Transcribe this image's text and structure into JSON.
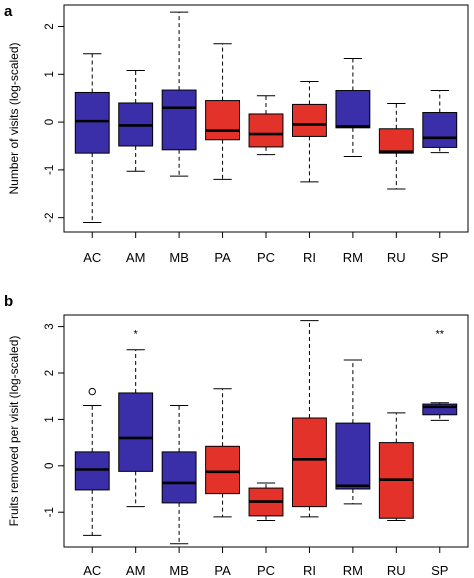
{
  "colors": {
    "blue": "#3a2fa8",
    "red": "#e3322a",
    "median": "#000000",
    "frame": "#000000"
  },
  "chart_data": [
    {
      "type": "boxplot",
      "panel_label": "a",
      "ylabel": "Number of visits (log-scaled)",
      "ylim": [
        -2.3,
        2.45
      ],
      "yticks": [
        -2,
        -1,
        0,
        1,
        2
      ],
      "categories": [
        "AC",
        "AM",
        "MB",
        "PA",
        "PC",
        "RI",
        "RM",
        "RU",
        "SP"
      ],
      "boxes": [
        {
          "cat": "AC",
          "min": -2.1,
          "q1": -0.65,
          "median": 0.02,
          "q3": 0.62,
          "max": 1.43,
          "color": "blue",
          "outliers": []
        },
        {
          "cat": "AM",
          "min": -1.03,
          "q1": -0.5,
          "median": -0.07,
          "q3": 0.4,
          "max": 1.08,
          "color": "blue",
          "outliers": []
        },
        {
          "cat": "MB",
          "min": -1.13,
          "q1": -0.58,
          "median": 0.3,
          "q3": 0.67,
          "max": 2.3,
          "color": "blue",
          "outliers": []
        },
        {
          "cat": "PA",
          "min": -1.2,
          "q1": -0.37,
          "median": -0.18,
          "q3": 0.45,
          "max": 1.64,
          "color": "red",
          "outliers": []
        },
        {
          "cat": "PC",
          "min": -0.68,
          "q1": -0.52,
          "median": -0.25,
          "q3": 0.17,
          "max": 0.55,
          "color": "red",
          "outliers": []
        },
        {
          "cat": "RI",
          "min": -1.25,
          "q1": -0.3,
          "median": -0.05,
          "q3": 0.37,
          "max": 0.85,
          "color": "red",
          "outliers": []
        },
        {
          "cat": "RM",
          "min": -0.72,
          "q1": -0.12,
          "median": -0.09,
          "q3": 0.66,
          "max": 1.33,
          "color": "blue",
          "outliers": []
        },
        {
          "cat": "RU",
          "min": -1.4,
          "q1": -0.65,
          "median": -0.62,
          "q3": -0.14,
          "max": 0.39,
          "color": "red",
          "outliers": []
        },
        {
          "cat": "SP",
          "min": -0.64,
          "q1": -0.53,
          "median": -0.33,
          "q3": 0.2,
          "max": 0.66,
          "color": "blue",
          "outliers": []
        }
      ],
      "annotations": []
    },
    {
      "type": "boxplot",
      "panel_label": "b",
      "ylabel": "Fruits removed per visit (log-scaled)",
      "ylim": [
        -1.75,
        3.25
      ],
      "yticks": [
        -1,
        0,
        1,
        2,
        3
      ],
      "categories": [
        "AC",
        "AM",
        "MB",
        "PA",
        "PC",
        "RI",
        "RM",
        "RU",
        "SP"
      ],
      "boxes": [
        {
          "cat": "AC",
          "min": -1.5,
          "q1": -0.52,
          "median": -0.08,
          "q3": 0.3,
          "max": 1.3,
          "color": "blue",
          "outliers": [
            1.6
          ]
        },
        {
          "cat": "AM",
          "min": -0.88,
          "q1": -0.12,
          "median": 0.6,
          "q3": 1.57,
          "max": 2.5,
          "color": "blue",
          "outliers": []
        },
        {
          "cat": "MB",
          "min": -1.68,
          "q1": -0.8,
          "median": -0.37,
          "q3": 0.3,
          "max": 1.3,
          "color": "blue",
          "outliers": []
        },
        {
          "cat": "PA",
          "min": -1.1,
          "q1": -0.6,
          "median": -0.13,
          "q3": 0.42,
          "max": 1.66,
          "color": "red",
          "outliers": []
        },
        {
          "cat": "PC",
          "min": -1.18,
          "q1": -1.08,
          "median": -0.77,
          "q3": -0.48,
          "max": -0.37,
          "color": "red",
          "outliers": []
        },
        {
          "cat": "RI",
          "min": -1.1,
          "q1": -0.88,
          "median": 0.14,
          "q3": 1.03,
          "max": 3.13,
          "color": "red",
          "outliers": []
        },
        {
          "cat": "RM",
          "min": -0.82,
          "q1": -0.5,
          "median": -0.43,
          "q3": 0.92,
          "max": 2.28,
          "color": "blue",
          "outliers": []
        },
        {
          "cat": "RU",
          "min": -1.18,
          "q1": -1.13,
          "median": -0.3,
          "q3": 0.5,
          "max": 1.14,
          "color": "red",
          "outliers": []
        },
        {
          "cat": "SP",
          "min": 0.98,
          "q1": 1.1,
          "median": 1.27,
          "q3": 1.33,
          "max": 1.36,
          "color": "blue",
          "outliers": []
        }
      ],
      "annotations": [
        {
          "cat": "AM",
          "y": 2.83,
          "text": "*"
        },
        {
          "cat": "SP",
          "y": 2.83,
          "text": "**"
        }
      ]
    }
  ]
}
